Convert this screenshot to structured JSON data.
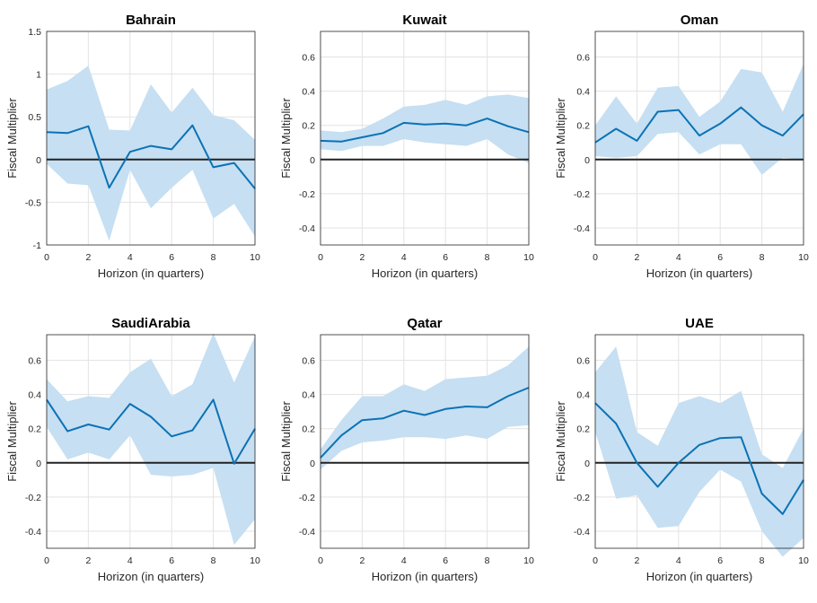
{
  "chart_data": [
    {
      "type": "line",
      "title": "Bahrain",
      "xlabel": "Horizon (in quarters)",
      "ylabel": "Fiscal Multiplier",
      "x": [
        0,
        1,
        2,
        3,
        4,
        5,
        6,
        7,
        8,
        9,
        10
      ],
      "xticks": [
        0,
        2,
        4,
        6,
        8,
        10
      ],
      "xlim": [
        0,
        10
      ],
      "ylim": [
        -1,
        1.5
      ],
      "yticks": [
        -1,
        -0.5,
        0,
        0.5,
        1,
        1.5
      ],
      "ytick_labels": [
        "-1",
        "-0.5",
        "0",
        "0.5",
        "1",
        "1.5"
      ],
      "series": [
        {
          "name": "Fiscal multiplier",
          "values": [
            0.32,
            0.31,
            0.39,
            -0.33,
            0.09,
            0.16,
            0.12,
            0.4,
            -0.09,
            -0.04,
            -0.34
          ]
        }
      ],
      "band": {
        "upper": [
          0.82,
          0.92,
          1.1,
          0.35,
          0.34,
          0.88,
          0.55,
          0.84,
          0.52,
          0.46,
          0.23
        ],
        "lower": [
          -0.05,
          -0.28,
          -0.3,
          -0.95,
          -0.12,
          -0.57,
          -0.33,
          -0.12,
          -0.69,
          -0.52,
          -0.9
        ]
      },
      "colors": {
        "line": "#0b72b5",
        "band": "#c6dff2"
      }
    },
    {
      "type": "line",
      "title": "Kuwait",
      "xlabel": "Horizon (in quarters)",
      "ylabel": "Fiscal Multiplier",
      "x": [
        0,
        1,
        2,
        3,
        4,
        5,
        6,
        7,
        8,
        9,
        10
      ],
      "xticks": [
        0,
        2,
        4,
        6,
        8,
        10
      ],
      "xlim": [
        0,
        10
      ],
      "ylim": [
        -0.5,
        0.75
      ],
      "yticks": [
        -0.4,
        -0.2,
        0,
        0.2,
        0.4,
        0.6
      ],
      "ytick_labels": [
        "-0.4",
        "-0.2",
        "0",
        "0.2",
        "0.4",
        "0.6"
      ],
      "series": [
        {
          "name": "Fiscal multiplier",
          "values": [
            0.11,
            0.105,
            0.13,
            0.155,
            0.215,
            0.205,
            0.21,
            0.2,
            0.24,
            0.195,
            0.16
          ]
        }
      ],
      "band": {
        "upper": [
          0.17,
          0.16,
          0.18,
          0.24,
          0.31,
          0.32,
          0.35,
          0.32,
          0.37,
          0.38,
          0.36
        ],
        "lower": [
          0.06,
          0.05,
          0.08,
          0.08,
          0.12,
          0.1,
          0.09,
          0.08,
          0.12,
          0.03,
          -0.02
        ]
      },
      "colors": {
        "line": "#0b72b5",
        "band": "#c6dff2"
      }
    },
    {
      "type": "line",
      "title": "Oman",
      "xlabel": "Horizon (in quarters)",
      "ylabel": "Fiscal Multiplier",
      "x": [
        0,
        1,
        2,
        3,
        4,
        5,
        6,
        7,
        8,
        9,
        10
      ],
      "xticks": [
        0,
        2,
        4,
        6,
        8,
        10
      ],
      "xlim": [
        0,
        10
      ],
      "ylim": [
        -0.5,
        0.75
      ],
      "yticks": [
        -0.4,
        -0.2,
        0,
        0.2,
        0.4,
        0.6
      ],
      "ytick_labels": [
        "-0.4",
        "-0.2",
        "0",
        "0.2",
        "0.4",
        "0.6"
      ],
      "series": [
        {
          "name": "Fiscal multiplier",
          "values": [
            0.1,
            0.18,
            0.11,
            0.28,
            0.29,
            0.14,
            0.21,
            0.305,
            0.2,
            0.14,
            0.265
          ]
        }
      ],
      "band": {
        "upper": [
          0.2,
          0.37,
          0.21,
          0.42,
          0.43,
          0.25,
          0.34,
          0.53,
          0.51,
          0.28,
          0.56
        ],
        "lower": [
          0.02,
          0.01,
          0.02,
          0.15,
          0.16,
          0.03,
          0.09,
          0.09,
          -0.09,
          0.01,
          0.0
        ]
      },
      "colors": {
        "line": "#0b72b5",
        "band": "#c6dff2"
      }
    },
    {
      "type": "line",
      "title": "SaudiArabia",
      "xlabel": "Horizon (in quarters)",
      "ylabel": "Fiscal Multiplier",
      "x": [
        0,
        1,
        2,
        3,
        4,
        5,
        6,
        7,
        8,
        9,
        10
      ],
      "xticks": [
        0,
        2,
        4,
        6,
        8,
        10
      ],
      "xlim": [
        0,
        10
      ],
      "ylim": [
        -0.5,
        0.75
      ],
      "yticks": [
        -0.4,
        -0.2,
        0,
        0.2,
        0.4,
        0.6
      ],
      "ytick_labels": [
        "-0.4",
        "-0.2",
        "0",
        "0.2",
        "0.4",
        "0.6"
      ],
      "series": [
        {
          "name": "Fiscal multiplier",
          "values": [
            0.37,
            0.185,
            0.225,
            0.195,
            0.345,
            0.27,
            0.155,
            0.19,
            0.37,
            -0.005,
            0.2
          ]
        }
      ],
      "band": {
        "upper": [
          0.49,
          0.36,
          0.39,
          0.38,
          0.53,
          0.61,
          0.39,
          0.46,
          0.76,
          0.47,
          0.74
        ],
        "lower": [
          0.21,
          0.02,
          0.06,
          0.02,
          0.16,
          -0.07,
          -0.08,
          -0.07,
          -0.03,
          -0.48,
          -0.33
        ]
      },
      "colors": {
        "line": "#0b72b5",
        "band": "#c6dff2"
      }
    },
    {
      "type": "line",
      "title": "Qatar",
      "xlabel": "Horizon (in quarters)",
      "ylabel": "Fiscal Multiplier",
      "x": [
        0,
        1,
        2,
        3,
        4,
        5,
        6,
        7,
        8,
        9,
        10
      ],
      "xticks": [
        0,
        2,
        4,
        6,
        8,
        10
      ],
      "xlim": [
        0,
        10
      ],
      "ylim": [
        -0.5,
        0.75
      ],
      "yticks": [
        -0.4,
        -0.2,
        0,
        0.2,
        0.4,
        0.6
      ],
      "ytick_labels": [
        "-0.4",
        "-0.2",
        "0",
        "0.2",
        "0.4",
        "0.6"
      ],
      "series": [
        {
          "name": "Fiscal multiplier",
          "values": [
            0.03,
            0.16,
            0.25,
            0.26,
            0.305,
            0.28,
            0.315,
            0.33,
            0.325,
            0.39,
            0.44
          ]
        }
      ],
      "band": {
        "upper": [
          0.08,
          0.25,
          0.39,
          0.39,
          0.46,
          0.42,
          0.49,
          0.5,
          0.51,
          0.57,
          0.68
        ],
        "lower": [
          -0.04,
          0.07,
          0.12,
          0.13,
          0.15,
          0.15,
          0.14,
          0.16,
          0.14,
          0.21,
          0.22
        ]
      },
      "colors": {
        "line": "#0b72b5",
        "band": "#c6dff2"
      }
    },
    {
      "type": "line",
      "title": "UAE",
      "xlabel": "Horizon (in quarters)",
      "ylabel": "Fiscal Multiplier",
      "x": [
        0,
        1,
        2,
        3,
        4,
        5,
        6,
        7,
        8,
        9,
        10
      ],
      "xticks": [
        0,
        2,
        4,
        6,
        8,
        10
      ],
      "xlim": [
        0,
        10
      ],
      "ylim": [
        -0.5,
        0.75
      ],
      "yticks": [
        -0.4,
        -0.2,
        0,
        0.2,
        0.4,
        0.6
      ],
      "ytick_labels": [
        "-0.4",
        "-0.2",
        "0",
        "0.2",
        "0.4",
        "0.6"
      ],
      "series": [
        {
          "name": "Fiscal multiplier",
          "values": [
            0.35,
            0.23,
            0.0,
            -0.14,
            0.0,
            0.105,
            0.145,
            0.15,
            -0.18,
            -0.3,
            -0.1
          ]
        }
      ],
      "band": {
        "upper": [
          0.53,
          0.68,
          0.18,
          0.1,
          0.35,
          0.39,
          0.35,
          0.42,
          0.05,
          -0.03,
          0.2
        ],
        "lower": [
          0.18,
          -0.21,
          -0.19,
          -0.38,
          -0.37,
          -0.17,
          -0.04,
          -0.11,
          -0.4,
          -0.55,
          -0.44
        ]
      },
      "colors": {
        "line": "#0b72b5",
        "band": "#c6dff2"
      }
    }
  ]
}
